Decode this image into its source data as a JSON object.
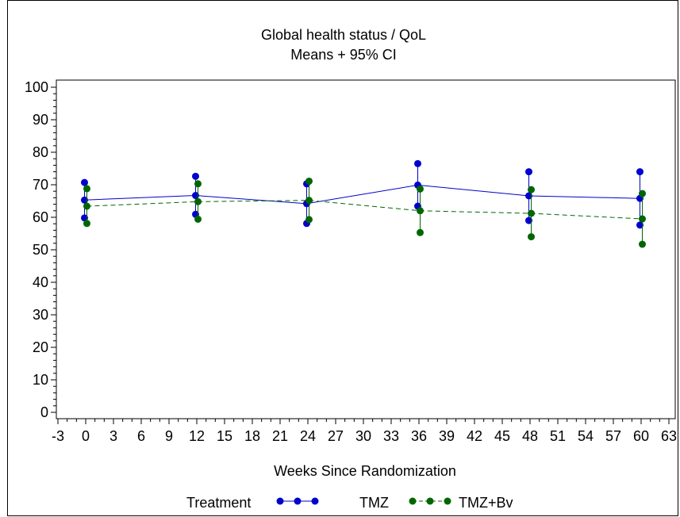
{
  "chart_data": {
    "type": "line",
    "title": "Global health status / QoL",
    "subtitle": "Means + 95% CI",
    "xlabel": "Weeks Since Randomization",
    "ylabel": "",
    "xlim": [
      -3,
      63
    ],
    "ylim": [
      0,
      100
    ],
    "x_ticks": [
      -3,
      0,
      3,
      6,
      9,
      12,
      15,
      18,
      21,
      24,
      27,
      30,
      33,
      36,
      39,
      42,
      45,
      48,
      51,
      54,
      57,
      60,
      63
    ],
    "y_ticks": [
      0,
      10,
      20,
      30,
      40,
      50,
      60,
      70,
      80,
      90,
      100
    ],
    "grid": false,
    "legend_position": "bottom",
    "legend_title": "Treatment",
    "series": [
      {
        "name": "TMZ",
        "color": "#0000cc",
        "line_style": "solid",
        "x": [
          0,
          12,
          24,
          36,
          48,
          60
        ],
        "mean": [
          65.3,
          66.7,
          64.2,
          69.9,
          66.6,
          65.8
        ],
        "lower": [
          59.8,
          60.9,
          58.1,
          63.4,
          59.0,
          57.6
        ],
        "upper": [
          70.7,
          72.6,
          70.3,
          76.5,
          74.0,
          74.0
        ]
      },
      {
        "name": "TMZ+Bv",
        "color": "#006600",
        "line_style": "dashed",
        "x": [
          0,
          12,
          24,
          36,
          48,
          60
        ],
        "mean": [
          63.4,
          64.8,
          65.2,
          62.0,
          61.2,
          59.5
        ],
        "lower": [
          58.1,
          59.4,
          59.3,
          55.3,
          54.0,
          51.7
        ],
        "upper": [
          68.8,
          70.3,
          71.1,
          68.7,
          68.5,
          67.3
        ]
      }
    ]
  }
}
